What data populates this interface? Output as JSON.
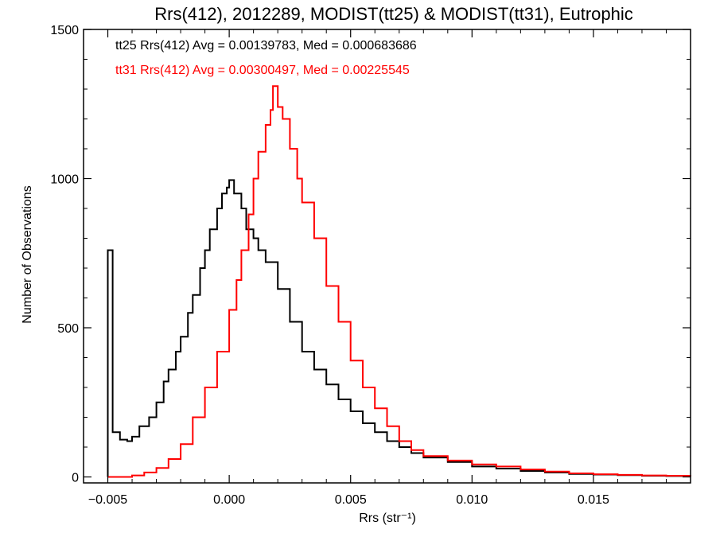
{
  "chart_data": {
    "type": "histogram",
    "title": "Rrs(412), 2012289, MODIST(tt25) & MODIST(tt31), Eutrophic",
    "xlabel": "Rrs (str⁻¹)",
    "ylabel": "Number of Observations",
    "xlim": [
      -0.006,
      0.019
    ],
    "ylim": [
      -20,
      1500
    ],
    "x_ticks": [
      -0.005,
      0.0,
      0.005,
      0.01,
      0.015
    ],
    "x_tick_labels": [
      "−0.005",
      "0.000",
      "0.005",
      "0.010",
      "0.015"
    ],
    "y_ticks": [
      0,
      500,
      1000,
      1500
    ],
    "y_tick_labels": [
      "0",
      "500",
      "1000",
      "1500"
    ],
    "grid": false,
    "annotations": [
      {
        "text": "tt25 Rrs(412) Avg = 0.00139783, Med = 0.000683686",
        "color": "#000000"
      },
      {
        "text": "tt31 Rrs(412) Avg = 0.00300497, Med = 0.00225545",
        "color": "#ff0000"
      }
    ],
    "series": [
      {
        "color": "#000000",
        "points": [
          [
            -0.005,
            0
          ],
          [
            -0.005,
            760
          ],
          [
            -0.0048,
            150
          ],
          [
            -0.0045,
            125
          ],
          [
            -0.0042,
            120
          ],
          [
            -0.004,
            135
          ],
          [
            -0.0037,
            170
          ],
          [
            -0.0033,
            200
          ],
          [
            -0.003,
            250
          ],
          [
            -0.0027,
            320
          ],
          [
            -0.0025,
            360
          ],
          [
            -0.0022,
            420
          ],
          [
            -0.002,
            470
          ],
          [
            -0.0017,
            550
          ],
          [
            -0.0015,
            610
          ],
          [
            -0.0012,
            700
          ],
          [
            -0.001,
            760
          ],
          [
            -0.0008,
            830
          ],
          [
            -0.0005,
            900
          ],
          [
            -0.0003,
            950
          ],
          [
            -0.0001,
            970
          ],
          [
            0.0,
            995
          ],
          [
            0.0002,
            950
          ],
          [
            0.0005,
            900
          ],
          [
            0.0007,
            830
          ],
          [
            0.001,
            800
          ],
          [
            0.0012,
            760
          ],
          [
            0.0015,
            720
          ],
          [
            0.002,
            630
          ],
          [
            0.0025,
            520
          ],
          [
            0.003,
            420
          ],
          [
            0.0035,
            360
          ],
          [
            0.004,
            310
          ],
          [
            0.0045,
            260
          ],
          [
            0.005,
            220
          ],
          [
            0.0055,
            180
          ],
          [
            0.006,
            150
          ],
          [
            0.0065,
            120
          ],
          [
            0.007,
            100
          ],
          [
            0.0075,
            80
          ],
          [
            0.008,
            65
          ],
          [
            0.009,
            50
          ],
          [
            0.01,
            35
          ],
          [
            0.011,
            28
          ],
          [
            0.012,
            20
          ],
          [
            0.013,
            15
          ],
          [
            0.014,
            10
          ],
          [
            0.015,
            8
          ],
          [
            0.016,
            6
          ],
          [
            0.017,
            4
          ],
          [
            0.018,
            3
          ],
          [
            0.019,
            2
          ]
        ]
      },
      {
        "color": "#ff0000",
        "points": [
          [
            -0.005,
            0
          ],
          [
            -0.004,
            5
          ],
          [
            -0.0035,
            15
          ],
          [
            -0.003,
            30
          ],
          [
            -0.0025,
            60
          ],
          [
            -0.002,
            110
          ],
          [
            -0.0015,
            200
          ],
          [
            -0.001,
            300
          ],
          [
            -0.0005,
            420
          ],
          [
            0.0,
            560
          ],
          [
            0.0003,
            660
          ],
          [
            0.0005,
            760
          ],
          [
            0.0008,
            880
          ],
          [
            0.001,
            1000
          ],
          [
            0.0012,
            1090
          ],
          [
            0.0015,
            1180
          ],
          [
            0.0017,
            1230
          ],
          [
            0.0018,
            1310
          ],
          [
            0.002,
            1240
          ],
          [
            0.0022,
            1200
          ],
          [
            0.0025,
            1100
          ],
          [
            0.0028,
            1000
          ],
          [
            0.003,
            920
          ],
          [
            0.0035,
            800
          ],
          [
            0.004,
            640
          ],
          [
            0.0045,
            520
          ],
          [
            0.005,
            390
          ],
          [
            0.0055,
            300
          ],
          [
            0.006,
            230
          ],
          [
            0.0065,
            170
          ],
          [
            0.007,
            120
          ],
          [
            0.0075,
            90
          ],
          [
            0.008,
            70
          ],
          [
            0.009,
            55
          ],
          [
            0.01,
            42
          ],
          [
            0.011,
            35
          ],
          [
            0.012,
            25
          ],
          [
            0.013,
            18
          ],
          [
            0.014,
            12
          ],
          [
            0.015,
            9
          ],
          [
            0.016,
            7
          ],
          [
            0.017,
            5
          ],
          [
            0.018,
            4
          ],
          [
            0.019,
            3
          ]
        ]
      }
    ]
  }
}
